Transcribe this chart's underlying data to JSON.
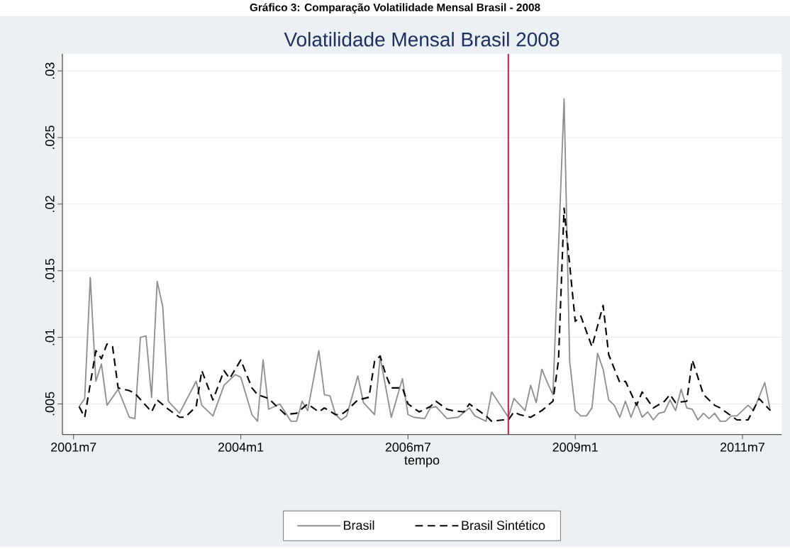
{
  "chart_data": {
    "type": "line",
    "title": "Gráfico 3: Comparação Volatilidade Mensal Brasil - 2008",
    "subtitle": "Volatilidade Mensal Brasil 2008",
    "xlabel": "tempo",
    "xlim": [
      "2001-05",
      "2012-02"
    ],
    "ylim": [
      0.0027,
      0.0313
    ],
    "xticks": [
      {
        "value": "2001-07",
        "label": "2001m7"
      },
      {
        "value": "2004-01",
        "label": "2004m1"
      },
      {
        "value": "2006-07",
        "label": "2006m7"
      },
      {
        "value": "2009-01",
        "label": "2009m1"
      },
      {
        "value": "2011-07",
        "label": "2011m7"
      }
    ],
    "yticks": [
      {
        "value": 0.005,
        "label": ".005"
      },
      {
        "value": 0.01,
        "label": ".01"
      },
      {
        "value": 0.015,
        "label": ".015"
      },
      {
        "value": 0.02,
        "label": ".02"
      },
      {
        "value": 0.025,
        "label": ".025"
      },
      {
        "value": 0.03,
        "label": ".03"
      }
    ],
    "grid": "y",
    "legend": "bottom",
    "ref_lines": [
      {
        "axis": "x",
        "value": "2008-01",
        "color": "#c8294f"
      }
    ],
    "series": [
      {
        "name": "Brasil",
        "color": "#8f8f8f",
        "line_style": "solid",
        "x": [
          "2001-08",
          "2001-09",
          "2001-10",
          "2001-11",
          "2001-12",
          "2002-01",
          "2002-03",
          "2002-05",
          "2002-06",
          "2002-07",
          "2002-08",
          "2002-09",
          "2002-10",
          "2002-11",
          "2002-12",
          "2003-02",
          "2003-05",
          "2003-06",
          "2003-08",
          "2003-10",
          "2003-12",
          "2004-01",
          "2004-03",
          "2004-04",
          "2004-05",
          "2004-06",
          "2004-08",
          "2004-10",
          "2004-11",
          "2004-12",
          "2005-01",
          "2005-03",
          "2005-04",
          "2005-05",
          "2005-06",
          "2005-07",
          "2005-08",
          "2005-10",
          "2005-11",
          "2006-01",
          "2006-02",
          "2006-04",
          "2006-06",
          "2006-07",
          "2006-08",
          "2006-10",
          "2006-11",
          "2006-12",
          "2007-02",
          "2007-04",
          "2007-06",
          "2007-07",
          "2007-09",
          "2007-10",
          "2008-01",
          "2008-02",
          "2008-04",
          "2008-05",
          "2008-06",
          "2008-07",
          "2008-08",
          "2008-09",
          "2008-11",
          "2008-12",
          "2009-01",
          "2009-02",
          "2009-03",
          "2009-04",
          "2009-05",
          "2009-06",
          "2009-07",
          "2009-08",
          "2009-09",
          "2009-10",
          "2009-11",
          "2009-12",
          "2010-01",
          "2010-02",
          "2010-03",
          "2010-04",
          "2010-05",
          "2010-06",
          "2010-07",
          "2010-08",
          "2010-09",
          "2010-10",
          "2010-11",
          "2010-12",
          "2011-01",
          "2011-02",
          "2011-03",
          "2011-04",
          "2011-05",
          "2011-06",
          "2011-08",
          "2011-09",
          "2011-11",
          "2011-12"
        ],
        "values": [
          0.0048,
          0.0054,
          0.0145,
          0.0067,
          0.008,
          0.0049,
          0.0061,
          0.004,
          0.0039,
          0.01,
          0.0101,
          0.0055,
          0.0142,
          0.0123,
          0.0052,
          0.0043,
          0.0067,
          0.0049,
          0.0041,
          0.0064,
          0.0072,
          0.007,
          0.0042,
          0.0037,
          0.0083,
          0.0046,
          0.005,
          0.0037,
          0.0037,
          0.0052,
          0.0045,
          0.009,
          0.0057,
          0.0056,
          0.0042,
          0.0038,
          0.0041,
          0.0071,
          0.0051,
          0.0042,
          0.0085,
          0.004,
          0.0069,
          0.0042,
          0.004,
          0.0039,
          0.0047,
          0.0048,
          0.0039,
          0.004,
          0.0047,
          0.0041,
          0.0037,
          0.0059,
          0.004,
          0.0054,
          0.0045,
          0.0064,
          0.0051,
          0.0076,
          0.0066,
          0.0057,
          0.0279,
          0.0082,
          0.0045,
          0.0041,
          0.0041,
          0.0047,
          0.0088,
          0.0076,
          0.0053,
          0.0049,
          0.004,
          0.0052,
          0.004,
          0.0051,
          0.004,
          0.0044,
          0.0038,
          0.0043,
          0.0044,
          0.0053,
          0.0045,
          0.0061,
          0.0047,
          0.0046,
          0.0038,
          0.0043,
          0.0039,
          0.0043,
          0.0037,
          0.0037,
          0.0041,
          0.0041,
          0.0049,
          0.0045,
          0.0066,
          0.0045
        ]
      },
      {
        "name": "Brasil Sintético",
        "color": "#000000",
        "line_style": "dashed",
        "x": [
          "2001-08",
          "2001-09",
          "2001-11",
          "2001-12",
          "2002-01",
          "2002-02",
          "2002-03",
          "2002-05",
          "2002-06",
          "2002-09",
          "2002-10",
          "2002-12",
          "2003-02",
          "2003-03",
          "2003-05",
          "2003-06",
          "2003-08",
          "2003-10",
          "2003-11",
          "2004-01",
          "2004-03",
          "2004-04",
          "2004-06",
          "2004-09",
          "2004-11",
          "2005-01",
          "2005-03",
          "2005-04",
          "2005-06",
          "2005-07",
          "2005-08",
          "2005-10",
          "2005-12",
          "2006-01",
          "2006-02",
          "2006-03",
          "2006-04",
          "2006-06",
          "2006-07",
          "2006-09",
          "2006-11",
          "2006-12",
          "2007-02",
          "2007-03",
          "2007-05",
          "2007-06",
          "2007-08",
          "2007-09",
          "2007-10",
          "2007-12",
          "2008-01",
          "2008-02",
          "2008-03",
          "2008-05",
          "2008-07",
          "2008-09",
          "2008-10",
          "2008-11",
          "2009-01",
          "2009-02",
          "2009-04",
          "2009-06",
          "2009-07",
          "2009-09",
          "2009-10",
          "2009-12",
          "2010-01",
          "2010-03",
          "2010-05",
          "2010-06",
          "2010-07",
          "2010-09",
          "2010-10",
          "2010-12",
          "2011-02",
          "2011-03",
          "2011-06",
          "2011-08",
          "2011-10",
          "2011-12"
        ],
        "values": [
          0.0048,
          0.004,
          0.009,
          0.0084,
          0.0095,
          0.0093,
          0.0062,
          0.006,
          0.0058,
          0.0044,
          0.0053,
          0.0046,
          0.004,
          0.004,
          0.0048,
          0.0075,
          0.0053,
          0.0075,
          0.0069,
          0.0083,
          0.0062,
          0.0057,
          0.0054,
          0.0042,
          0.0043,
          0.005,
          0.0044,
          0.0047,
          0.0042,
          0.0042,
          0.0045,
          0.0053,
          0.0055,
          0.0082,
          0.0086,
          0.0072,
          0.0062,
          0.0062,
          0.005,
          0.0044,
          0.0048,
          0.0052,
          0.0046,
          0.0045,
          0.0044,
          0.005,
          0.0044,
          0.0041,
          0.0037,
          0.0038,
          0.0038,
          0.0044,
          0.0042,
          0.004,
          0.0045,
          0.0052,
          0.0083,
          0.0197,
          0.0112,
          0.0116,
          0.0093,
          0.0124,
          0.0087,
          0.0066,
          0.0067,
          0.0049,
          0.0059,
          0.0047,
          0.0052,
          0.0057,
          0.0051,
          0.0052,
          0.0083,
          0.0057,
          0.0049,
          0.0047,
          0.0038,
          0.0038,
          0.0054,
          0.0045
        ]
      }
    ]
  }
}
